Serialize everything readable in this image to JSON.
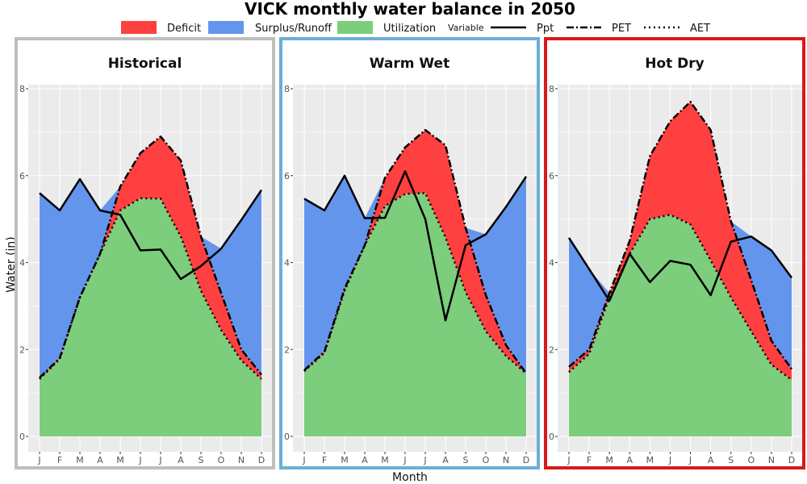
{
  "chart_data": {
    "type": "area",
    "title": "VICK monthly water balance in 2050",
    "xlabel": "Month",
    "ylabel": "Water (in)",
    "ylim": [
      0,
      8
    ],
    "yticks": [
      0,
      2,
      4,
      6,
      8
    ],
    "categories": [
      "J",
      "F",
      "M",
      "A",
      "M",
      "J",
      "J",
      "A",
      "S",
      "O",
      "N",
      "D"
    ],
    "legend": {
      "placement": "top",
      "fill_items": [
        {
          "label": "Deficit",
          "color": "#ff4040"
        },
        {
          "label": "Surplus/Runoff",
          "color": "#6495ed"
        },
        {
          "label": "Utilization",
          "color": "#7ccd7c"
        }
      ],
      "variable_title": "Variable",
      "line_items": [
        {
          "label": "Ppt",
          "style": "solid"
        },
        {
          "label": "PET",
          "style": "dashdot"
        },
        {
          "label": "AET",
          "style": "dotted"
        }
      ]
    },
    "panels": [
      {
        "name": "Historical",
        "border_color": "#bebebe",
        "series": [
          {
            "name": "Ppt",
            "values": [
              5.6,
              5.2,
              5.92,
              5.2,
              5.1,
              4.28,
              4.3,
              3.62,
              3.92,
              4.32,
              4.98,
              5.67
            ]
          },
          {
            "name": "PET",
            "values": [
              1.35,
              1.8,
              3.2,
              4.2,
              5.75,
              6.52,
              6.9,
              6.35,
              4.6,
              3.3,
              2.0,
              1.42
            ]
          },
          {
            "name": "AET",
            "values": [
              1.32,
              1.78,
              3.2,
              4.2,
              5.2,
              5.48,
              5.47,
              4.6,
              3.35,
              2.45,
              1.75,
              1.32
            ]
          }
        ]
      },
      {
        "name": "Warm Wet",
        "border_color": "#6baed6",
        "series": [
          {
            "name": "Ppt",
            "values": [
              5.47,
              5.2,
              6.0,
              5.02,
              5.03,
              6.1,
              5.0,
              2.67,
              4.4,
              4.65,
              5.28,
              5.98
            ]
          },
          {
            "name": "PET",
            "values": [
              1.52,
              1.95,
              3.4,
              4.4,
              5.95,
              6.65,
              7.05,
              6.7,
              4.8,
              3.25,
              2.1,
              1.45
            ]
          },
          {
            "name": "AET",
            "values": [
              1.5,
              1.92,
              3.35,
              4.4,
              5.3,
              5.58,
              5.6,
              4.58,
              3.32,
              2.42,
              1.85,
              1.45
            ]
          }
        ]
      },
      {
        "name": "Hot Dry",
        "border_color": "#d7191c",
        "series": [
          {
            "name": "Ppt",
            "values": [
              4.57,
              3.85,
              3.12,
              4.2,
              3.55,
              4.04,
              3.95,
              3.25,
              4.48,
              4.6,
              4.28,
              3.65
            ]
          },
          {
            "name": "PET",
            "values": [
              1.6,
              2.0,
              3.3,
              4.5,
              6.45,
              7.25,
              7.7,
              7.05,
              4.95,
              3.6,
              2.2,
              1.55
            ]
          },
          {
            "name": "AET",
            "values": [
              1.48,
              1.9,
              3.2,
              4.2,
              5.0,
              5.1,
              4.88,
              4.05,
              3.2,
              2.42,
              1.65,
              1.3
            ]
          }
        ]
      }
    ]
  }
}
